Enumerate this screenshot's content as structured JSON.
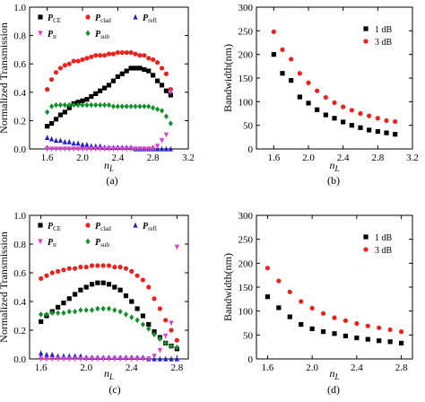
{
  "colors": {
    "P_CE": "#000000",
    "P_clad": "#e8231f",
    "P_refl": "#1f1fd6",
    "P_tr": "#e23ad8",
    "P_sub": "#10902a",
    "bw_1dB": "#000000",
    "bw_3dB": "#e8231f"
  },
  "chart_data": [
    {
      "type": "scatter",
      "panel_caption": "(a)",
      "xlabel": "n",
      "xlabel_sub": "L",
      "ylabel": "Normalized Transmission",
      "xlim": [
        1.4,
        3.2
      ],
      "ylim": [
        0,
        1.0
      ],
      "xticks": [
        "1.6",
        "2.0",
        "2.4",
        "2.8",
        "3.2"
      ],
      "yticks": [
        "0.0",
        "0.2",
        "0.4",
        "0.6",
        "0.8",
        "1.0"
      ],
      "legend_position": "top",
      "x": [
        1.6,
        1.65,
        1.7,
        1.75,
        1.8,
        1.85,
        1.9,
        1.95,
        2.0,
        2.05,
        2.1,
        2.15,
        2.2,
        2.25,
        2.3,
        2.35,
        2.4,
        2.45,
        2.5,
        2.55,
        2.6,
        2.65,
        2.7,
        2.75,
        2.8,
        2.85,
        2.9,
        2.95,
        3.0
      ],
      "series": [
        {
          "name": "P",
          "sub": "CE",
          "marker": "square",
          "color_key": "P_CE",
          "values": [
            0.16,
            0.18,
            0.21,
            0.24,
            0.26,
            0.29,
            0.32,
            0.33,
            0.34,
            0.35,
            0.37,
            0.39,
            0.41,
            0.43,
            0.45,
            0.48,
            0.51,
            0.53,
            0.55,
            0.57,
            0.57,
            0.57,
            0.56,
            0.55,
            0.52,
            0.48,
            0.45,
            0.41,
            0.38
          ]
        },
        {
          "name": "P",
          "sub": "clad",
          "marker": "circle",
          "color_key": "P_clad",
          "values": [
            0.42,
            0.49,
            0.54,
            0.57,
            0.59,
            0.6,
            0.62,
            0.62,
            0.63,
            0.64,
            0.65,
            0.66,
            0.66,
            0.66,
            0.67,
            0.67,
            0.68,
            0.68,
            0.68,
            0.68,
            0.67,
            0.66,
            0.66,
            0.64,
            0.63,
            0.61,
            0.57,
            0.53,
            0.42
          ]
        },
        {
          "name": "P",
          "sub": "refl",
          "marker": "triangle-up",
          "color_key": "P_refl",
          "values": [
            0.08,
            0.07,
            0.06,
            0.06,
            0.05,
            0.05,
            0.04,
            0.04,
            0.03,
            0.03,
            0.02,
            0.02,
            0.02,
            0.01,
            0.01,
            0.01,
            0.01,
            0.01,
            0.01,
            0.01,
            0.0,
            0.0,
            0.0,
            0.0,
            0.0,
            0.0,
            0.0,
            0.0,
            0.0
          ]
        },
        {
          "name": "P",
          "sub": "tr",
          "marker": "triangle-down",
          "color_key": "P_tr",
          "values": [
            0.0,
            0.0,
            0.0,
            0.0,
            0.0,
            0.0,
            0.0,
            0.0,
            0.0,
            0.0,
            0.0,
            0.0,
            0.0,
            0.0,
            0.0,
            0.0,
            0.0,
            0.0,
            0.0,
            0.0,
            0.0,
            0.0,
            0.0,
            0.0,
            0.0,
            0.02,
            0.06,
            0.1,
            0.4
          ]
        },
        {
          "name": "P",
          "sub": "sub",
          "marker": "diamond",
          "color_key": "P_sub",
          "values": [
            0.26,
            0.3,
            0.31,
            0.31,
            0.31,
            0.31,
            0.31,
            0.31,
            0.31,
            0.31,
            0.31,
            0.31,
            0.31,
            0.31,
            0.31,
            0.3,
            0.3,
            0.3,
            0.3,
            0.3,
            0.3,
            0.3,
            0.3,
            0.3,
            0.29,
            0.28,
            0.27,
            0.23,
            0.18
          ]
        }
      ]
    },
    {
      "type": "scatter",
      "panel_caption": "(b)",
      "xlabel": "n",
      "xlabel_sub": "L",
      "ylabel": "Bandwidth(nm)",
      "xlim": [
        1.4,
        3.2
      ],
      "ylim": [
        0,
        300
      ],
      "xticks": [
        "1.6",
        "2.0",
        "2.4",
        "2.8",
        "3.2"
      ],
      "yticks": [
        "0",
        "50",
        "100",
        "150",
        "200",
        "250",
        "300"
      ],
      "legend_position": "top-right",
      "x": [
        1.6,
        1.7,
        1.8,
        1.9,
        2.0,
        2.1,
        2.2,
        2.3,
        2.4,
        2.5,
        2.6,
        2.7,
        2.8,
        2.9,
        3.0
      ],
      "series": [
        {
          "name": "1 dB",
          "marker": "square",
          "color_key": "bw_1dB",
          "values": [
            200,
            160,
            145,
            110,
            97,
            83,
            72,
            65,
            57,
            50,
            45,
            40,
            37,
            34,
            31
          ]
        },
        {
          "name": "3 dB",
          "marker": "circle",
          "color_key": "bw_3dB",
          "values": [
            248,
            210,
            190,
            160,
            140,
            123,
            109,
            98,
            89,
            82,
            75,
            70,
            65,
            60,
            58
          ]
        }
      ]
    },
    {
      "type": "scatter",
      "panel_caption": "(c)",
      "xlabel": "n",
      "xlabel_sub": "L",
      "ylabel": "Normalized Transmission",
      "xlim": [
        1.5,
        2.9
      ],
      "ylim": [
        0,
        1.0
      ],
      "xticks": [
        "1.6",
        "2.0",
        "2.4",
        "2.8"
      ],
      "yticks": [
        "0.0",
        "0.2",
        "0.4",
        "0.6",
        "0.8",
        "1.0"
      ],
      "legend_position": "top",
      "x": [
        1.6,
        1.65,
        1.7,
        1.75,
        1.8,
        1.85,
        1.9,
        1.95,
        2.0,
        2.05,
        2.1,
        2.15,
        2.2,
        2.25,
        2.3,
        2.35,
        2.4,
        2.45,
        2.5,
        2.55,
        2.6,
        2.65,
        2.7,
        2.75,
        2.8
      ],
      "series": [
        {
          "name": "P",
          "sub": "CE",
          "marker": "square",
          "color_key": "P_CE",
          "values": [
            0.26,
            0.3,
            0.33,
            0.36,
            0.39,
            0.42,
            0.45,
            0.48,
            0.5,
            0.52,
            0.53,
            0.53,
            0.52,
            0.5,
            0.48,
            0.44,
            0.4,
            0.35,
            0.3,
            0.24,
            0.19,
            0.15,
            0.11,
            0.09,
            0.07
          ]
        },
        {
          "name": "P",
          "sub": "clad",
          "marker": "circle",
          "color_key": "P_clad",
          "values": [
            0.56,
            0.58,
            0.6,
            0.61,
            0.62,
            0.63,
            0.63,
            0.64,
            0.64,
            0.65,
            0.65,
            0.65,
            0.65,
            0.64,
            0.64,
            0.63,
            0.61,
            0.58,
            0.55,
            0.5,
            0.42,
            0.35,
            0.27,
            0.2,
            0.13
          ]
        },
        {
          "name": "P",
          "sub": "refl",
          "marker": "triangle-up",
          "color_key": "P_refl",
          "values": [
            0.04,
            0.03,
            0.03,
            0.02,
            0.02,
            0.02,
            0.02,
            0.02,
            0.01,
            0.01,
            0.01,
            0.01,
            0.01,
            0.01,
            0.01,
            0.01,
            0.01,
            0.01,
            0.01,
            0.0,
            0.0,
            0.0,
            0.0,
            0.0,
            0.0
          ]
        },
        {
          "name": "P",
          "sub": "tr",
          "marker": "triangle-down",
          "color_key": "P_tr",
          "values": [
            0.0,
            0.0,
            0.0,
            0.0,
            0.0,
            0.0,
            0.0,
            0.0,
            0.0,
            0.0,
            0.0,
            0.0,
            0.0,
            0.0,
            0.0,
            0.0,
            0.0,
            0.0,
            0.0,
            0.0,
            0.02,
            0.06,
            0.16,
            0.25,
            0.78
          ]
        },
        {
          "name": "P",
          "sub": "sub",
          "marker": "diamond",
          "color_key": "P_sub",
          "values": [
            0.31,
            0.31,
            0.32,
            0.32,
            0.32,
            0.33,
            0.33,
            0.34,
            0.34,
            0.34,
            0.35,
            0.35,
            0.35,
            0.34,
            0.33,
            0.31,
            0.29,
            0.27,
            0.24,
            0.21,
            0.17,
            0.14,
            0.11,
            0.09,
            0.08
          ]
        }
      ]
    },
    {
      "type": "scatter",
      "panel_caption": "(d)",
      "xlabel": "n",
      "xlabel_sub": "L",
      "ylabel": "Bandwidth(nm)",
      "xlim": [
        1.5,
        2.9
      ],
      "ylim": [
        0,
        300
      ],
      "xticks": [
        "1.6",
        "2.0",
        "2.4",
        "2.8"
      ],
      "yticks": [
        "0",
        "50",
        "100",
        "150",
        "200",
        "250",
        "300"
      ],
      "legend_position": "top-right",
      "x": [
        1.6,
        1.7,
        1.8,
        1.9,
        2.0,
        2.1,
        2.2,
        2.3,
        2.4,
        2.5,
        2.6,
        2.7,
        2.8
      ],
      "series": [
        {
          "name": "1 dB",
          "marker": "square",
          "color_key": "bw_1dB",
          "values": [
            130,
            107,
            88,
            72,
            63,
            57,
            53,
            48,
            44,
            41,
            38,
            36,
            33
          ]
        },
        {
          "name": "3 dB",
          "marker": "circle",
          "color_key": "bw_3dB",
          "values": [
            190,
            163,
            140,
            120,
            106,
            95,
            86,
            80,
            74,
            69,
            65,
            61,
            57
          ]
        }
      ]
    }
  ]
}
